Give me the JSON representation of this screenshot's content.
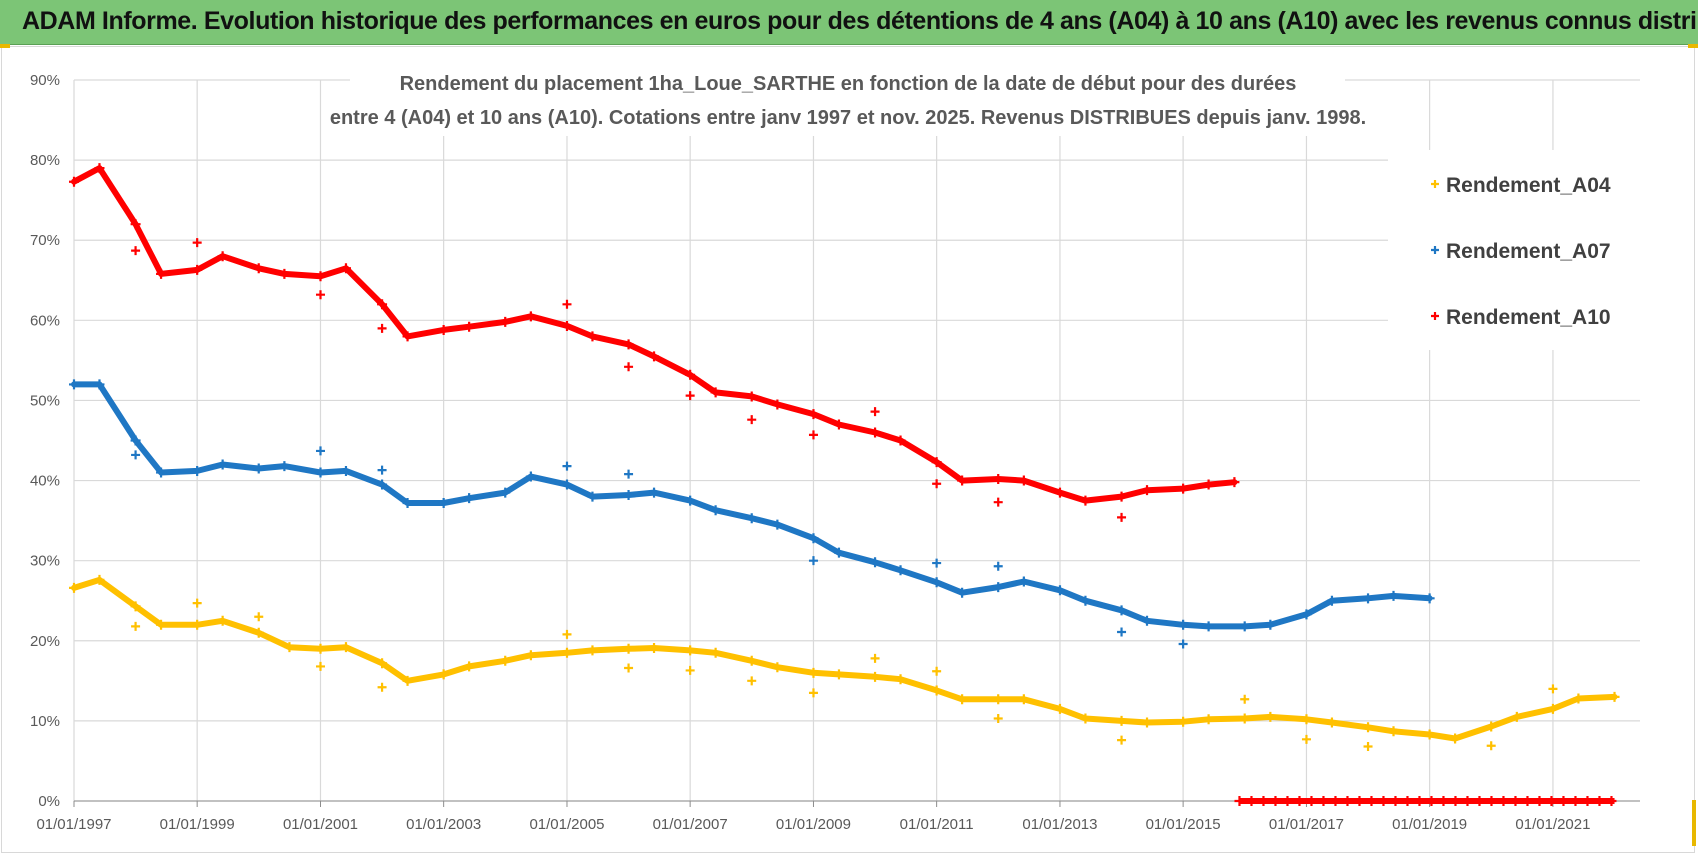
{
  "banner": {
    "text": "ADAM Informe. Evolution historique des performances en euros pour des détentions de 4 ans (A04) à 10 ans (A10) avec les revenus connus distribués"
  },
  "colors": {
    "banner_bg": "#7cc576",
    "gridline": "#d9d9d9",
    "axis_text": "#595959",
    "accent_corner": "#e8b800"
  },
  "chart_data": {
    "type": "scatter",
    "title_lines": [
      "Rendement du placement 1ha_Loue_SARTHE en fonction de la date de début pour des durées",
      "entre 4 (A04) et 10 ans (A10).  Cotations entre janv 1997 et nov. 2025. Revenus DISTRIBUES depuis janv. 1998."
    ],
    "xlabel": "",
    "ylabel": "",
    "x_range": [
      "1997-01-01",
      "2022-06-01"
    ],
    "ylim": [
      0,
      90
    ],
    "y_ticks": [
      "0%",
      "10%",
      "20%",
      "30%",
      "40%",
      "50%",
      "60%",
      "70%",
      "80%",
      "90%"
    ],
    "x_ticks": [
      {
        "date": "1997-01-01",
        "label": "01/01/1997"
      },
      {
        "date": "1999-01-01",
        "label": "01/01/1999"
      },
      {
        "date": "2001-01-01",
        "label": "01/01/2001"
      },
      {
        "date": "2003-01-01",
        "label": "01/01/2003"
      },
      {
        "date": "2005-01-01",
        "label": "01/01/2005"
      },
      {
        "date": "2007-01-01",
        "label": "01/01/2007"
      },
      {
        "date": "2009-01-01",
        "label": "01/01/2009"
      },
      {
        "date": "2011-01-01",
        "label": "01/01/2011"
      },
      {
        "date": "2013-01-01",
        "label": "01/01/2013"
      },
      {
        "date": "2015-01-01",
        "label": "01/01/2015"
      },
      {
        "date": "2017-01-01",
        "label": "01/01/2017"
      },
      {
        "date": "2019-01-01",
        "label": "01/01/2019"
      },
      {
        "date": "2021-01-01",
        "label": "01/01/2021"
      }
    ],
    "grid": true,
    "legend_position": "top-right",
    "marker": "+",
    "series": [
      {
        "name": "Rendement_A04",
        "color": "#ffc000",
        "points": [
          [
            "1997-01-01",
            26.6
          ],
          [
            "1997-06-01",
            27.6
          ],
          [
            "1998-01-01",
            24.3
          ],
          [
            "1998-06-01",
            22.0
          ],
          [
            "1999-01-01",
            22.0
          ],
          [
            "1999-06-01",
            22.5
          ],
          [
            "2000-01-01",
            21.0
          ],
          [
            "2000-07-01",
            19.2
          ],
          [
            "2001-01-01",
            19.0
          ],
          [
            "2001-06-01",
            19.2
          ],
          [
            "2002-01-01",
            17.2
          ],
          [
            "2002-06-01",
            15.0
          ],
          [
            "2003-01-01",
            15.8
          ],
          [
            "2003-06-01",
            16.8
          ],
          [
            "2004-01-01",
            17.5
          ],
          [
            "2004-06-01",
            18.2
          ],
          [
            "2005-01-01",
            18.5
          ],
          [
            "2005-06-01",
            18.8
          ],
          [
            "2006-01-01",
            19.0
          ],
          [
            "2006-06-01",
            19.1
          ],
          [
            "2007-01-01",
            18.8
          ],
          [
            "2007-06-01",
            18.5
          ],
          [
            "2008-01-01",
            17.5
          ],
          [
            "2008-06-01",
            16.7
          ],
          [
            "2009-01-01",
            16.0
          ],
          [
            "2009-06-01",
            15.8
          ],
          [
            "2010-01-01",
            15.5
          ],
          [
            "2010-06-01",
            15.2
          ],
          [
            "2011-01-01",
            13.8
          ],
          [
            "2011-06-01",
            12.7
          ],
          [
            "2012-01-01",
            12.7
          ],
          [
            "2012-06-01",
            12.7
          ],
          [
            "2013-01-01",
            11.5
          ],
          [
            "2013-06-01",
            10.3
          ],
          [
            "2014-01-01",
            10.0
          ],
          [
            "2014-06-01",
            9.8
          ],
          [
            "2015-01-01",
            9.9
          ],
          [
            "2015-06-01",
            10.2
          ],
          [
            "2016-01-01",
            10.3
          ],
          [
            "2016-06-01",
            10.5
          ],
          [
            "2017-01-01",
            10.2
          ],
          [
            "2017-06-01",
            9.8
          ],
          [
            "2018-01-01",
            9.2
          ],
          [
            "2018-06-01",
            8.7
          ],
          [
            "2019-01-01",
            8.3
          ],
          [
            "2019-06-01",
            7.8
          ],
          [
            "2020-01-01",
            9.3
          ],
          [
            "2020-06-01",
            10.5
          ],
          [
            "2021-01-01",
            11.5
          ],
          [
            "2021-06-01",
            12.8
          ],
          [
            "2022-01-01",
            13.0
          ]
        ],
        "outliers": [
          [
            "1998-01-01",
            21.8
          ],
          [
            "1999-01-01",
            24.7
          ],
          [
            "2000-01-01",
            23.0
          ],
          [
            "2001-01-01",
            16.8
          ],
          [
            "2002-01-01",
            14.2
          ],
          [
            "2005-01-01",
            20.8
          ],
          [
            "2006-01-01",
            16.6
          ],
          [
            "2007-01-01",
            16.3
          ],
          [
            "2008-01-01",
            15.0
          ],
          [
            "2009-01-01",
            13.5
          ],
          [
            "2010-01-01",
            17.8
          ],
          [
            "2011-01-01",
            16.2
          ],
          [
            "2012-01-01",
            10.3
          ],
          [
            "2014-01-01",
            7.6
          ],
          [
            "2016-01-01",
            12.7
          ],
          [
            "2017-01-01",
            7.7
          ],
          [
            "2018-01-01",
            6.8
          ],
          [
            "2020-01-01",
            6.9
          ],
          [
            "2021-01-01",
            14.0
          ]
        ]
      },
      {
        "name": "Rendement_A07",
        "color": "#1f77c4",
        "points": [
          [
            "1997-01-01",
            52.0
          ],
          [
            "1997-06-01",
            52.0
          ],
          [
            "1998-01-01",
            45.0
          ],
          [
            "1998-06-01",
            41.0
          ],
          [
            "1999-01-01",
            41.2
          ],
          [
            "1999-06-01",
            42.0
          ],
          [
            "2000-01-01",
            41.5
          ],
          [
            "2000-06-01",
            41.8
          ],
          [
            "2001-01-01",
            41.0
          ],
          [
            "2001-06-01",
            41.2
          ],
          [
            "2002-01-01",
            39.5
          ],
          [
            "2002-06-01",
            37.2
          ],
          [
            "2003-01-01",
            37.2
          ],
          [
            "2003-06-01",
            37.8
          ],
          [
            "2004-01-01",
            38.5
          ],
          [
            "2004-06-01",
            40.5
          ],
          [
            "2005-01-01",
            39.5
          ],
          [
            "2005-06-01",
            38.0
          ],
          [
            "2006-01-01",
            38.2
          ],
          [
            "2006-06-01",
            38.5
          ],
          [
            "2007-01-01",
            37.5
          ],
          [
            "2007-06-01",
            36.3
          ],
          [
            "2008-01-01",
            35.3
          ],
          [
            "2008-06-01",
            34.5
          ],
          [
            "2009-01-01",
            32.8
          ],
          [
            "2009-06-01",
            31.0
          ],
          [
            "2010-01-01",
            29.8
          ],
          [
            "2010-06-01",
            28.8
          ],
          [
            "2011-01-01",
            27.3
          ],
          [
            "2011-06-01",
            26.0
          ],
          [
            "2012-01-01",
            26.7
          ],
          [
            "2012-06-01",
            27.4
          ],
          [
            "2013-01-01",
            26.3
          ],
          [
            "2013-06-01",
            25.0
          ],
          [
            "2014-01-01",
            23.8
          ],
          [
            "2014-06-01",
            22.5
          ],
          [
            "2015-01-01",
            22.0
          ],
          [
            "2015-06-01",
            21.8
          ],
          [
            "2016-01-01",
            21.8
          ],
          [
            "2016-06-01",
            22.0
          ],
          [
            "2017-01-01",
            23.3
          ],
          [
            "2017-06-01",
            25.0
          ],
          [
            "2018-01-01",
            25.3
          ],
          [
            "2018-06-01",
            25.6
          ],
          [
            "2019-01-01",
            25.3
          ]
        ],
        "outliers": [
          [
            "1998-01-01",
            43.2
          ],
          [
            "2001-01-01",
            43.7
          ],
          [
            "2002-01-01",
            41.3
          ],
          [
            "2005-01-01",
            41.8
          ],
          [
            "2006-01-01",
            40.8
          ],
          [
            "2009-01-01",
            30.0
          ],
          [
            "2011-01-01",
            29.7
          ],
          [
            "2012-01-01",
            29.3
          ],
          [
            "2014-01-01",
            21.1
          ],
          [
            "2015-01-01",
            19.6
          ]
        ]
      },
      {
        "name": "Rendement_A10",
        "color": "#ff0000",
        "points": [
          [
            "1997-01-01",
            77.3
          ],
          [
            "1997-06-01",
            79.0
          ],
          [
            "1998-01-01",
            72.0
          ],
          [
            "1998-06-01",
            65.8
          ],
          [
            "1999-01-01",
            66.3
          ],
          [
            "1999-06-01",
            68.0
          ],
          [
            "2000-01-01",
            66.5
          ],
          [
            "2000-06-01",
            65.8
          ],
          [
            "2001-01-01",
            65.5
          ],
          [
            "2001-06-01",
            66.5
          ],
          [
            "2002-01-01",
            62.0
          ],
          [
            "2002-06-01",
            58.0
          ],
          [
            "2003-01-01",
            58.8
          ],
          [
            "2003-06-01",
            59.2
          ],
          [
            "2004-01-01",
            59.8
          ],
          [
            "2004-06-01",
            60.5
          ],
          [
            "2005-01-01",
            59.3
          ],
          [
            "2005-06-01",
            58.0
          ],
          [
            "2006-01-01",
            57.0
          ],
          [
            "2006-06-01",
            55.5
          ],
          [
            "2007-01-01",
            53.2
          ],
          [
            "2007-06-01",
            51.0
          ],
          [
            "2008-01-01",
            50.5
          ],
          [
            "2008-06-01",
            49.5
          ],
          [
            "2009-01-01",
            48.3
          ],
          [
            "2009-06-01",
            47.0
          ],
          [
            "2010-01-01",
            46.0
          ],
          [
            "2010-06-01",
            45.0
          ],
          [
            "2011-01-01",
            42.3
          ],
          [
            "2011-06-01",
            40.0
          ],
          [
            "2012-01-01",
            40.2
          ],
          [
            "2012-06-01",
            40.0
          ],
          [
            "2013-01-01",
            38.5
          ],
          [
            "2013-06-01",
            37.5
          ],
          [
            "2014-01-01",
            38.0
          ],
          [
            "2014-06-01",
            38.8
          ],
          [
            "2015-01-01",
            39.0
          ],
          [
            "2015-06-01",
            39.5
          ],
          [
            "2015-11-01",
            39.8
          ]
        ],
        "outliers": [
          [
            "1998-01-01",
            68.7
          ],
          [
            "1999-01-01",
            69.7
          ],
          [
            "2001-01-01",
            63.2
          ],
          [
            "2002-01-01",
            59.0
          ],
          [
            "2005-01-01",
            62.0
          ],
          [
            "2006-01-01",
            54.2
          ],
          [
            "2007-01-01",
            50.6
          ],
          [
            "2008-01-01",
            47.6
          ],
          [
            "2009-01-01",
            45.7
          ],
          [
            "2010-01-01",
            48.6
          ],
          [
            "2011-01-01",
            39.6
          ],
          [
            "2012-01-01",
            37.3
          ],
          [
            "2014-01-01",
            35.4
          ]
        ],
        "zero_segment": [
          "2015-12-01",
          "2022-01-01"
        ]
      }
    ]
  }
}
